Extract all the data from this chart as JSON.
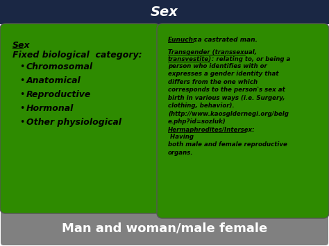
{
  "title": "Sex",
  "title_bg": "#1a2744",
  "title_color": "#ffffff",
  "left_box_color": "#2e8b00",
  "right_box_color": "#2e8b00",
  "bg_color": "#ffffff",
  "bottom_bar_color": "#808080",
  "bottom_text": "Man and woman/male female",
  "bottom_text_color": "#ffffff",
  "left_title": "Sex",
  "left_subtitle": "Fixed biological  category:",
  "left_bullets": [
    "Chromosomal",
    "Anatomical",
    "Reproductive",
    "Hormonal",
    "Other physiological"
  ],
  "right_eunuchs_head": "Eunuchs",
  "right_eunuchs_tail": " :a castrated man.",
  "right_trans_head1": "Transgender (transsexual,",
  "right_trans_head2": "transvestite)",
  "right_trans_tail": " : relating to, or being a",
  "right_body": "person who identifies with or\nexpresses a gender identity that\ndiffers from the one which\ncorresponds to the person's sex at\nbirth in various ways (i.e. Surgery,\nclothing, behavior).\n(http://www.kaosgldernegi.org/belg\ne.php?id=sozluk)",
  "right_herma_head": "Hermaphrodites/Intersex:",
  "right_herma_body": " Having\nboth male and female reproductive\norgans."
}
